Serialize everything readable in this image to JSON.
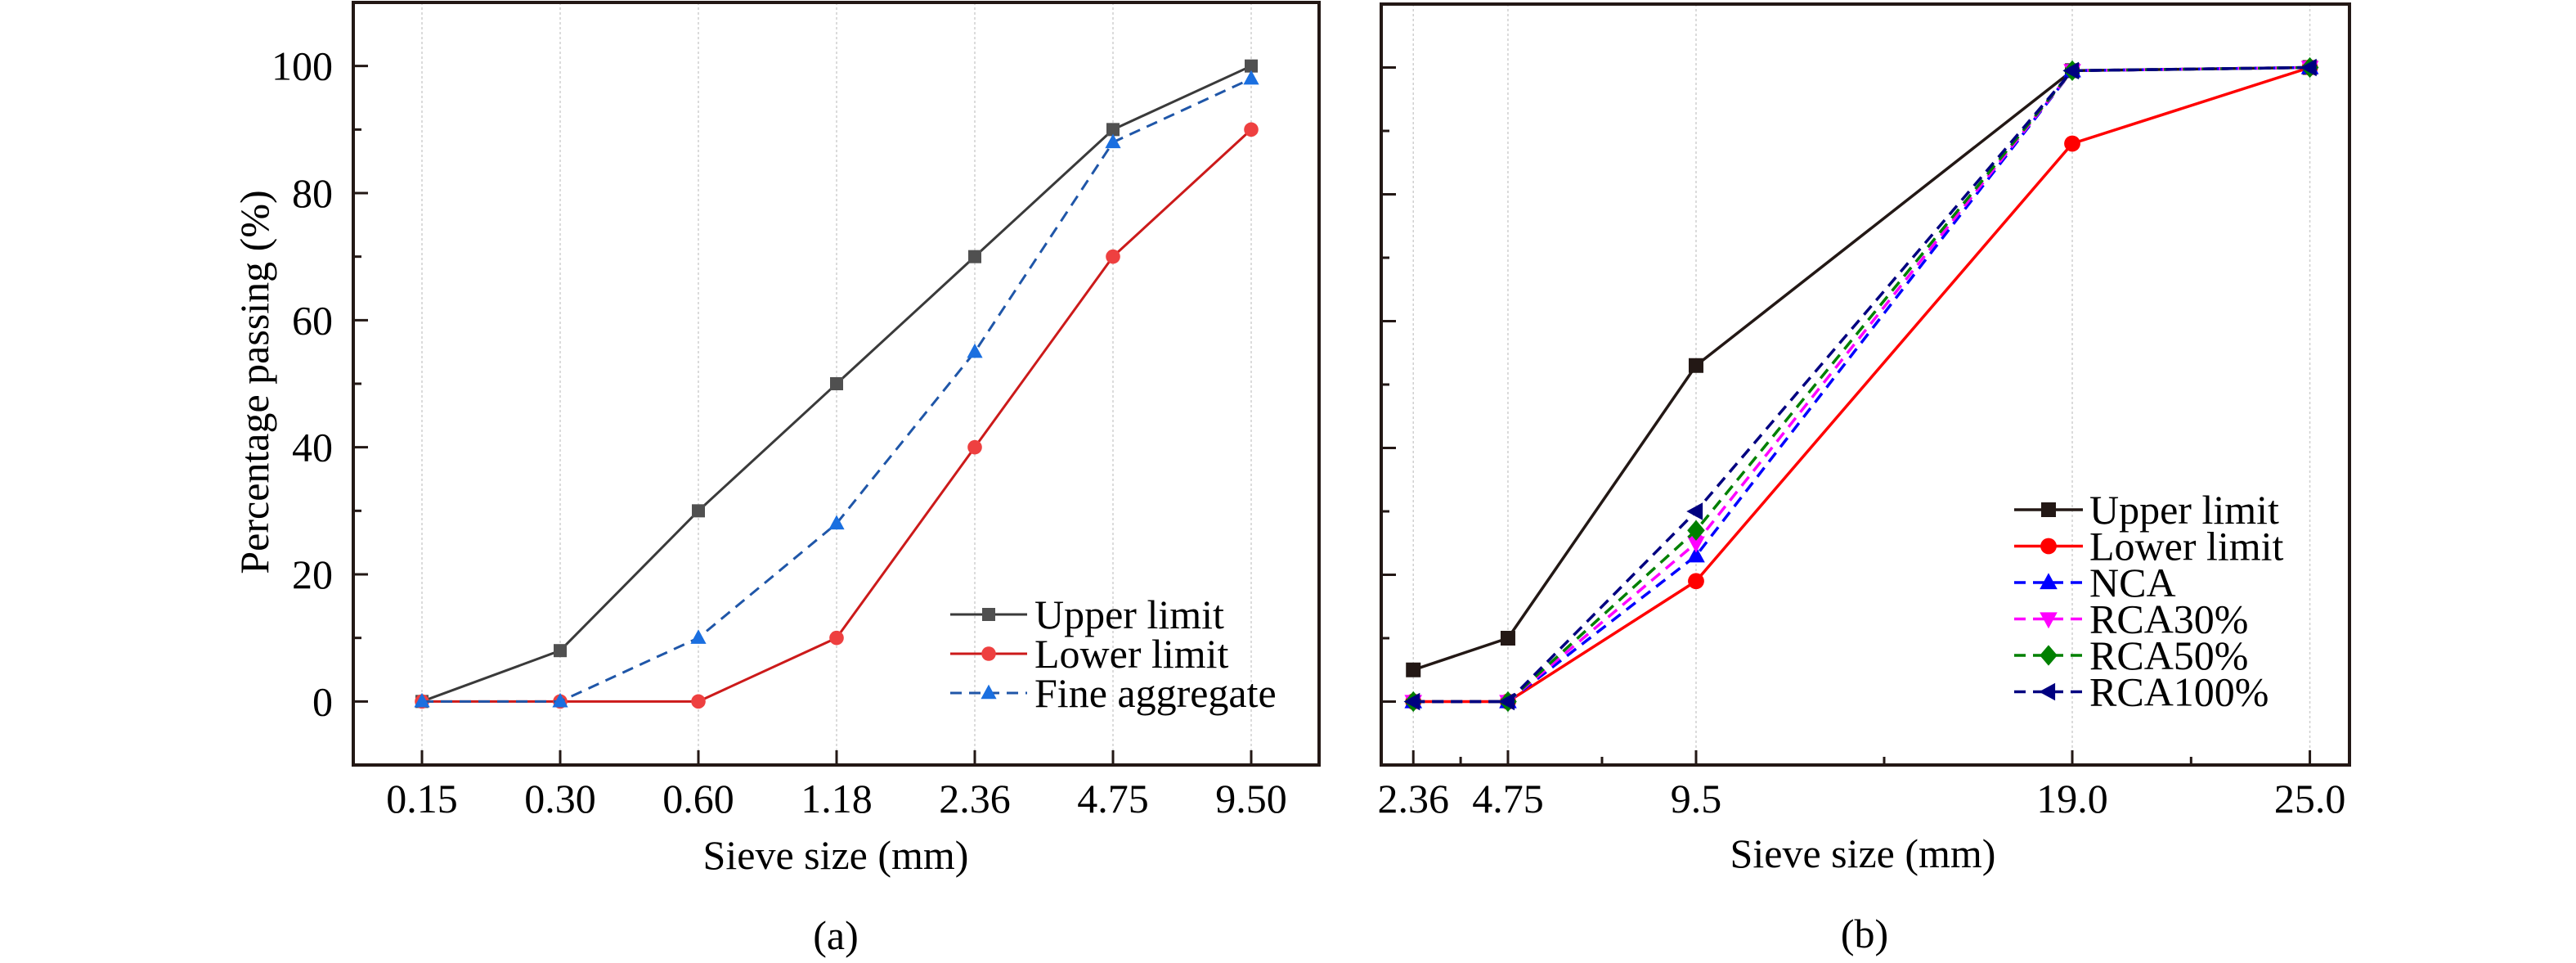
{
  "figure": {
    "panels": [
      "(a)",
      "(b)"
    ]
  },
  "chart_data": [
    {
      "type": "line",
      "panel_label": "(a)",
      "title": "",
      "xlabel": "Sieve size (mm)",
      "ylabel": "Percentage passing (%)",
      "x_scale": "categorical",
      "categories": [
        "0.15",
        "0.30",
        "0.60",
        "1.18",
        "2.36",
        "4.75",
        "9.50"
      ],
      "ylim": [
        -10,
        110
      ],
      "yticks": [
        0,
        20,
        40,
        60,
        80,
        100
      ],
      "y_minor_step": 10,
      "grid": "vertical dotted at categories",
      "legend_position": "bottom-right",
      "series": [
        {
          "name": "Upper limit",
          "values": [
            0,
            8,
            30,
            50,
            70,
            90,
            100
          ],
          "line_color": "#3a3a3a",
          "marker_color": "#505050",
          "marker": "square",
          "dash": "solid"
        },
        {
          "name": "Lower limit",
          "values": [
            0,
            0,
            0,
            10,
            40,
            70,
            90
          ],
          "line_color": "#cc1a1a",
          "marker_color": "#ee4040",
          "marker": "circle",
          "dash": "solid"
        },
        {
          "name": "Fine aggregate",
          "values": [
            0,
            0,
            10,
            28,
            55,
            88,
            98
          ],
          "line_color": "#1f56a8",
          "marker_color": "#1a6fe0",
          "marker": "triangle-up",
          "dash": "dashed"
        }
      ]
    },
    {
      "type": "line",
      "panel_label": "(b)",
      "title": "",
      "xlabel": "Sieve size (mm)",
      "ylabel": "",
      "x_scale": "linear",
      "x": [
        2.36,
        4.75,
        9.5,
        19.0,
        25.0
      ],
      "xticks": [
        "2.36",
        "4.75",
        "9.5",
        "19.0",
        "25.0"
      ],
      "xlim": [
        1.55,
        26.0
      ],
      "ylim": [
        -10,
        110
      ],
      "yticks": [
        0,
        20,
        40,
        60,
        80,
        100
      ],
      "y_tick_labels_shown": false,
      "y_minor_step": 10,
      "grid": "vertical dotted at x ticks",
      "legend_position": "right",
      "series": [
        {
          "name": "Upper limit",
          "values": [
            5,
            10,
            53,
            99.5,
            100
          ],
          "line_color": "#231815",
          "marker_color": "#231815",
          "marker": "square",
          "dash": "solid"
        },
        {
          "name": "Lower limit",
          "values": [
            0,
            0,
            19,
            88,
            100
          ],
          "line_color": "#ff0000",
          "marker_color": "#ff0000",
          "marker": "circle",
          "dash": "solid"
        },
        {
          "name": "NCA",
          "values": [
            0,
            0,
            23,
            99.5,
            100
          ],
          "line_color": "#0000ff",
          "marker_color": "#0000ff",
          "marker": "triangle-up",
          "dash": "dashed"
        },
        {
          "name": "RCA30%",
          "values": [
            0,
            0,
            25,
            99.5,
            100
          ],
          "line_color": "#ff00ff",
          "marker_color": "#ff00ff",
          "marker": "triangle-down",
          "dash": "dashed"
        },
        {
          "name": "RCA50%",
          "values": [
            0,
            0,
            27,
            99.5,
            100
          ],
          "line_color": "#008000",
          "marker_color": "#008000",
          "marker": "diamond",
          "dash": "dashed"
        },
        {
          "name": "RCA100%",
          "values": [
            0,
            0,
            30,
            99.5,
            100
          ],
          "line_color": "#000080",
          "marker_color": "#000080",
          "marker": "triangle-left",
          "dash": "dashed"
        }
      ]
    }
  ]
}
